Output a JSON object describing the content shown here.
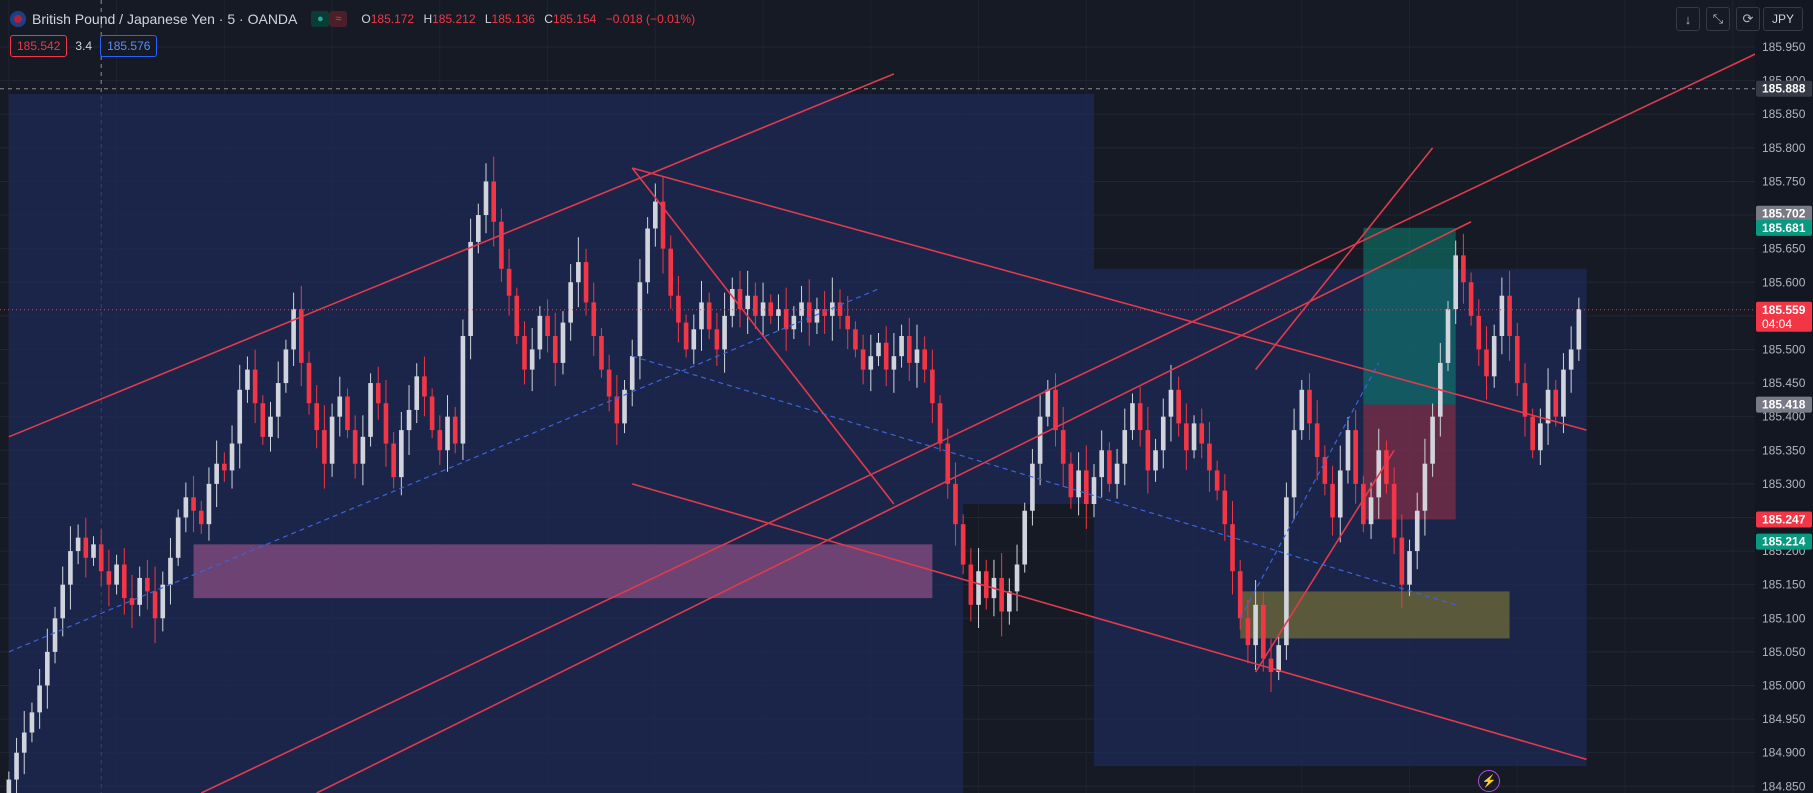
{
  "header": {
    "symbol": "British Pound / Japanese Yen · 5 · OANDA",
    "ohlc": [
      {
        "k": "O",
        "v": "185.172"
      },
      {
        "k": "H",
        "v": "185.212"
      },
      {
        "k": "L",
        "v": "185.136"
      },
      {
        "k": "C",
        "v": "185.154"
      }
    ],
    "change": "−0.018 (−0.01%)"
  },
  "trade": {
    "sell": "185.542",
    "spread": "3.4",
    "buy": "185.576"
  },
  "toolbar": {
    "down_icon": "↓",
    "expand_icon": "⤡",
    "refresh_icon": "⟳",
    "currency": "JPY"
  },
  "colors": {
    "background": "#161a25",
    "up": "#d1d4dc",
    "down": "#f23645",
    "trendline": "#e03a4e",
    "blue_zone": "#1c2a56",
    "purple_zone": "#8a4d82",
    "olive_zone": "#6b6638",
    "buy": "#089981",
    "sell": "#f23645"
  },
  "chart_data": {
    "type": "candlestick",
    "symbol": "GBPJPY",
    "timeframe": "5",
    "ylim": [
      184.84,
      186.02
    ],
    "y_ticks": [
      185.95,
      185.9,
      185.85,
      185.8,
      185.75,
      185.7,
      185.65,
      185.6,
      185.55,
      185.5,
      185.45,
      185.4,
      185.35,
      185.3,
      185.25,
      185.2,
      185.15,
      185.1,
      185.05,
      185.0,
      184.95,
      184.9,
      184.85
    ],
    "price_labels": [
      {
        "value": "185.888",
        "kind": "crosshair"
      },
      {
        "value": "185.702",
        "kind": "gray"
      },
      {
        "value": "185.681",
        "kind": "green"
      },
      {
        "value": "185.559",
        "kind": "current",
        "countdown": "04:04"
      },
      {
        "value": "185.418",
        "kind": "gray"
      },
      {
        "value": "185.247",
        "kind": "red"
      },
      {
        "value": "185.214",
        "kind": "green"
      }
    ],
    "closes": [
      184.86,
      184.9,
      184.93,
      184.96,
      185.0,
      185.05,
      185.1,
      185.15,
      185.2,
      185.22,
      185.19,
      185.21,
      185.17,
      185.15,
      185.18,
      185.13,
      185.12,
      185.16,
      185.14,
      185.1,
      185.15,
      185.19,
      185.25,
      185.28,
      185.26,
      185.24,
      185.3,
      185.33,
      185.32,
      185.36,
      185.44,
      185.47,
      185.42,
      185.37,
      185.4,
      185.45,
      185.5,
      185.56,
      185.48,
      185.42,
      185.38,
      185.33,
      185.4,
      185.43,
      185.38,
      185.33,
      185.37,
      185.45,
      185.42,
      185.36,
      185.31,
      185.38,
      185.41,
      185.46,
      185.43,
      185.38,
      185.35,
      185.4,
      185.36,
      185.52,
      185.66,
      185.7,
      185.75,
      185.69,
      185.62,
      185.58,
      185.52,
      185.47,
      185.5,
      185.55,
      185.52,
      185.48,
      185.54,
      185.6,
      185.63,
      185.57,
      185.52,
      185.47,
      185.43,
      185.39,
      185.44,
      185.49,
      185.6,
      185.68,
      185.72,
      185.65,
      185.58,
      185.54,
      185.5,
      185.53,
      185.57,
      185.53,
      185.5,
      185.55,
      185.59,
      185.56,
      185.58,
      185.55,
      185.57,
      185.55,
      185.56,
      185.53,
      185.55,
      185.57,
      185.54,
      185.56,
      185.55,
      185.57,
      185.55,
      185.53,
      185.5,
      185.47,
      185.49,
      185.51,
      185.47,
      185.49,
      185.52,
      185.48,
      185.5,
      185.47,
      185.42,
      185.36,
      185.3,
      185.24,
      185.18,
      185.12,
      185.17,
      185.13,
      185.16,
      185.11,
      185.14,
      185.18,
      185.26,
      185.33,
      185.4,
      185.44,
      185.38,
      185.33,
      185.28,
      185.32,
      185.27,
      185.31,
      185.35,
      185.3,
      185.33,
      185.38,
      185.42,
      185.38,
      185.32,
      185.35,
      185.4,
      185.44,
      185.39,
      185.35,
      185.39,
      185.36,
      185.32,
      185.29,
      185.24,
      185.17,
      185.1,
      185.06,
      185.12,
      185.04,
      185.02,
      185.06,
      185.28,
      185.38,
      185.44,
      185.39,
      185.34,
      185.3,
      185.25,
      185.32,
      185.38,
      185.3,
      185.24,
      185.28,
      185.35,
      185.3,
      185.22,
      185.15,
      185.2,
      185.26,
      185.33,
      185.4,
      185.48,
      185.56,
      185.64,
      185.6,
      185.55,
      185.5,
      185.46,
      185.52,
      185.58,
      185.52,
      185.45,
      185.4,
      185.35,
      185.39,
      185.44,
      185.4,
      185.47,
      185.5,
      185.56
    ],
    "drawings": {
      "blue_zones": [
        [
          0,
          124,
          185.88,
          184.84
        ],
        [
          124,
          141,
          185.88,
          185.27
        ],
        [
          141,
          205,
          185.62,
          184.88
        ]
      ],
      "purple_zone": [
        24,
        120,
        185.21,
        185.13
      ],
      "olive_zone": [
        160,
        195,
        185.14,
        185.07
      ],
      "long_position": {
        "x": [
          176,
          188
        ],
        "entry": 185.418,
        "target": 185.681,
        "stop": 185.247
      },
      "trendlines": [
        [
          [
            0,
            185.37
          ],
          [
            115,
            185.91
          ]
        ],
        [
          [
            81,
            185.77
          ],
          [
            205,
            185.38
          ]
        ],
        [
          [
            81,
            185.3
          ],
          [
            205,
            184.89
          ]
        ],
        [
          [
            81,
            185.77
          ],
          [
            115,
            185.27
          ]
        ],
        [
          [
            25,
            184.84
          ],
          [
            227,
            185.94
          ]
        ],
        [
          [
            40,
            184.84
          ],
          [
            190,
            185.69
          ]
        ],
        [
          [
            162,
            185.47
          ],
          [
            185,
            185.8
          ]
        ],
        [
          [
            162,
            185.02
          ],
          [
            180,
            185.35
          ]
        ]
      ],
      "dashed_lines": [
        [
          [
            0,
            185.05
          ],
          [
            113,
            185.59
          ]
        ],
        [
          [
            81,
            185.49
          ],
          [
            188,
            185.12
          ]
        ],
        [
          [
            160,
            185.1
          ],
          [
            178,
            185.48
          ]
        ]
      ]
    }
  }
}
